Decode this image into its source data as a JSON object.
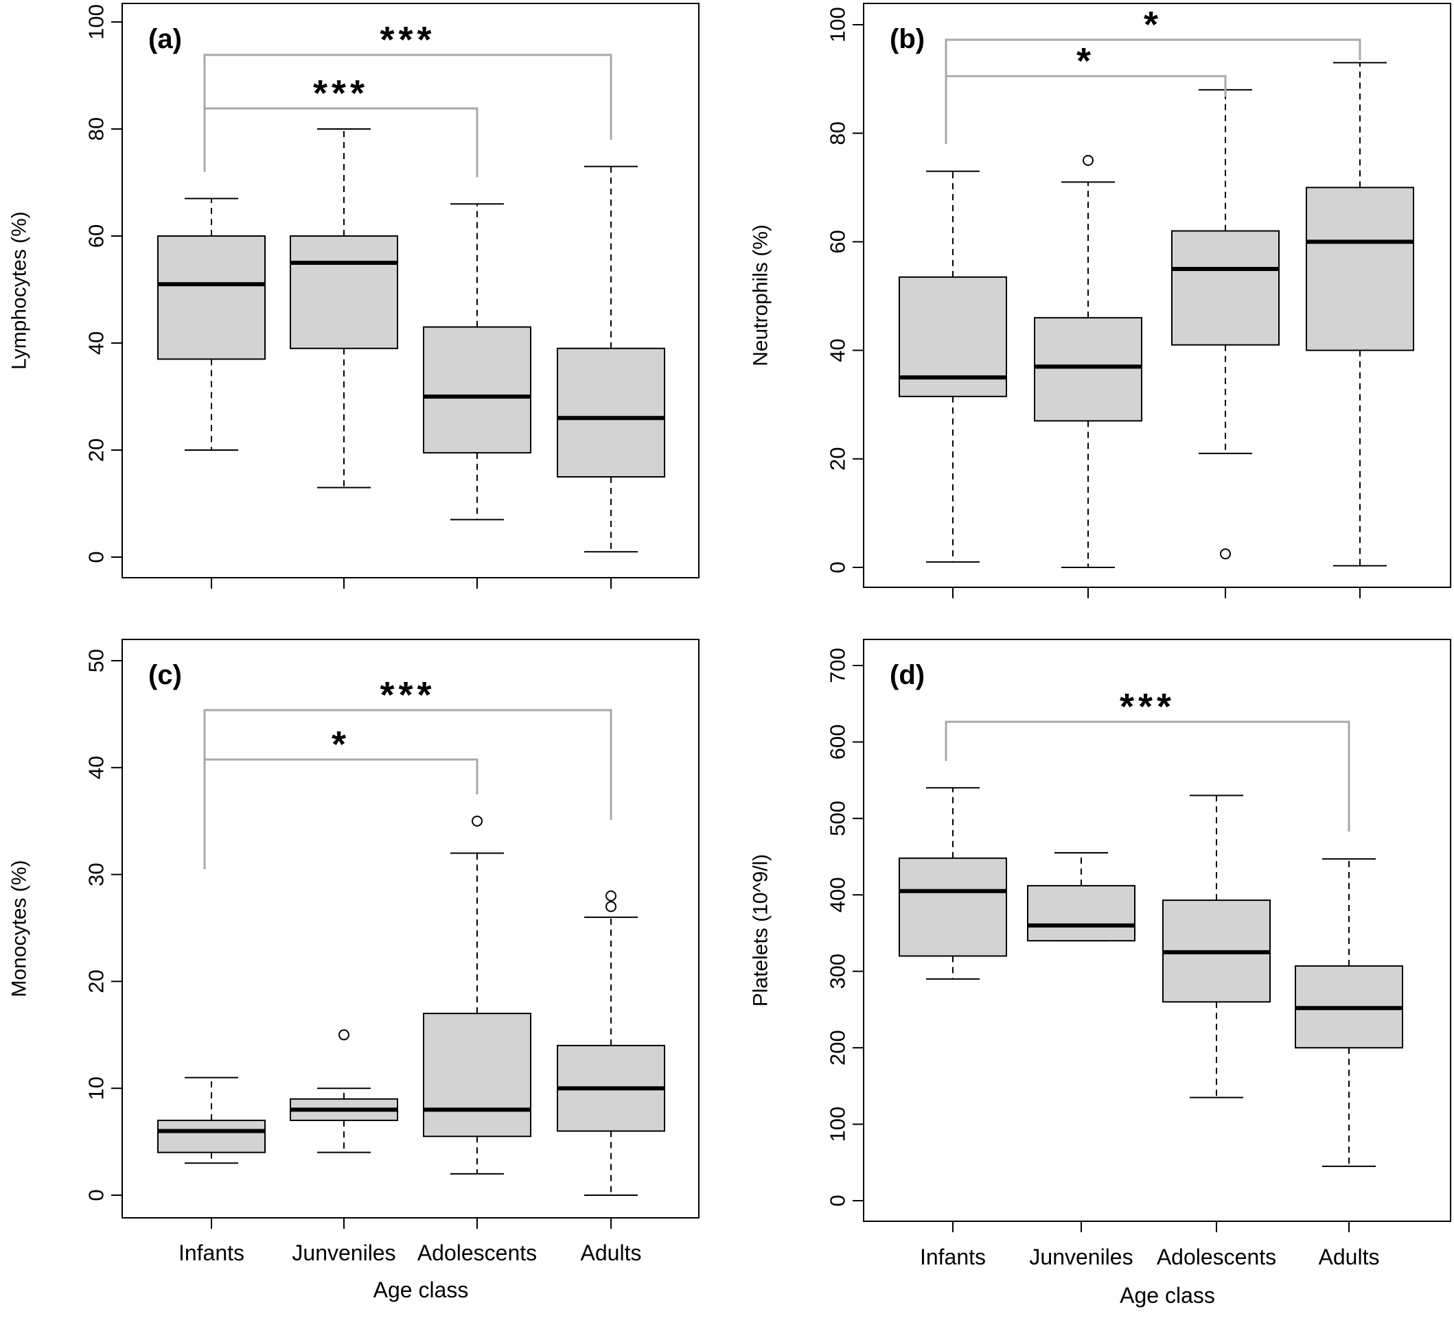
{
  "chart_data": [
    {
      "type": "box",
      "panel_label": "(a)",
      "ylabel": "Lymphocytes (%)",
      "xlabel": "",
      "ylim": [
        0,
        100
      ],
      "yticks": [
        0,
        20,
        40,
        60,
        80,
        100
      ],
      "categories": [
        "Infants",
        "Junveniles",
        "Adolescents",
        "Adults"
      ],
      "boxes": [
        {
          "whisker_low": 20,
          "q1": 37,
          "median": 51,
          "q3": 60,
          "whisker_high": 67,
          "outliers": []
        },
        {
          "whisker_low": 13,
          "q1": 39,
          "median": 55,
          "q3": 60,
          "whisker_high": 80,
          "outliers": []
        },
        {
          "whisker_low": 7,
          "q1": 19.5,
          "median": 30,
          "q3": 43,
          "whisker_high": 66,
          "outliers": []
        },
        {
          "whisker_low": 1,
          "q1": 15,
          "median": 26,
          "q3": 39,
          "whisker_high": 73,
          "outliers": []
        }
      ],
      "significance": [
        {
          "from": 0,
          "to": 3,
          "label": "***"
        },
        {
          "from": 0,
          "to": 2,
          "label": "***"
        }
      ]
    },
    {
      "type": "box",
      "panel_label": "(b)",
      "ylabel": "Neutrophils (%)",
      "xlabel": "",
      "ylim": [
        0,
        100
      ],
      "yticks": [
        0,
        20,
        40,
        60,
        80,
        100
      ],
      "categories": [
        "Infants",
        "Junveniles",
        "Adolescents",
        "Adults"
      ],
      "boxes": [
        {
          "whisker_low": 1,
          "q1": 31.5,
          "median": 35,
          "q3": 53.5,
          "whisker_high": 73,
          "outliers": []
        },
        {
          "whisker_low": 0,
          "q1": 27,
          "median": 37,
          "q3": 46,
          "whisker_high": 71,
          "outliers": [
            75
          ]
        },
        {
          "whisker_low": 21,
          "q1": 41,
          "median": 55,
          "q3": 62,
          "whisker_high": 88,
          "outliers": [
            2.5
          ]
        },
        {
          "whisker_low": 0.3,
          "q1": 40,
          "median": 60,
          "q3": 70,
          "whisker_high": 93,
          "outliers": []
        }
      ],
      "significance": [
        {
          "from": 0,
          "to": 3,
          "label": "*"
        },
        {
          "from": 0,
          "to": 2,
          "label": "*"
        }
      ]
    },
    {
      "type": "box",
      "panel_label": "(c)",
      "ylabel": "Monocytes (%)",
      "xlabel": "",
      "ylim": [
        0,
        50
      ],
      "yticks": [
        0,
        10,
        20,
        30,
        40,
        50
      ],
      "categories": [
        "Infants",
        "Junveniles",
        "Adolescents",
        "Adults"
      ],
      "category_labels_shown": true,
      "boxes": [
        {
          "whisker_low": 3,
          "q1": 4,
          "median": 6,
          "q3": 7,
          "whisker_high": 11,
          "outliers": []
        },
        {
          "whisker_low": 4,
          "q1": 7,
          "median": 8,
          "q3": 9,
          "whisker_high": 10,
          "outliers": [
            15
          ]
        },
        {
          "whisker_low": 2,
          "q1": 5.5,
          "median": 8,
          "q3": 17,
          "whisker_high": 32,
          "outliers": [
            35
          ]
        },
        {
          "whisker_low": 0,
          "q1": 6,
          "median": 10,
          "q3": 14,
          "whisker_high": 26,
          "outliers": [
            27,
            28
          ]
        }
      ],
      "significance": [
        {
          "from": 0,
          "to": 3,
          "label": "***"
        },
        {
          "from": 0,
          "to": 2,
          "label": "*"
        }
      ],
      "xlabel_bottom": "Age class"
    },
    {
      "type": "box",
      "panel_label": "(d)",
      "ylabel": "Platelets (10^9/l)",
      "xlabel": "",
      "ylim": [
        0,
        700
      ],
      "yticks": [
        0,
        100,
        200,
        300,
        400,
        500,
        600,
        700
      ],
      "categories": [
        "Infants",
        "Junveniles",
        "Adolescents",
        "Adults"
      ],
      "category_labels_shown": true,
      "boxes": [
        {
          "whisker_low": 290,
          "q1": 320,
          "median": 405,
          "q3": 448,
          "whisker_high": 540,
          "outliers": []
        },
        {
          "whisker_low": 340,
          "q1": 340,
          "median": 360,
          "q3": 412,
          "whisker_high": 455,
          "outliers": []
        },
        {
          "whisker_low": 135,
          "q1": 260,
          "median": 325,
          "q3": 393,
          "whisker_high": 530,
          "outliers": []
        },
        {
          "whisker_low": 45,
          "q1": 200,
          "median": 252,
          "q3": 307,
          "whisker_high": 447,
          "outliers": []
        }
      ],
      "significance": [
        {
          "from": 0,
          "to": 3,
          "label": "***"
        }
      ],
      "xlabel_bottom": "Age class"
    }
  ],
  "style": {
    "box_fill": "#d3d3d3",
    "bracket_color": "#a8a8a8",
    "axis_color": "#000000"
  }
}
